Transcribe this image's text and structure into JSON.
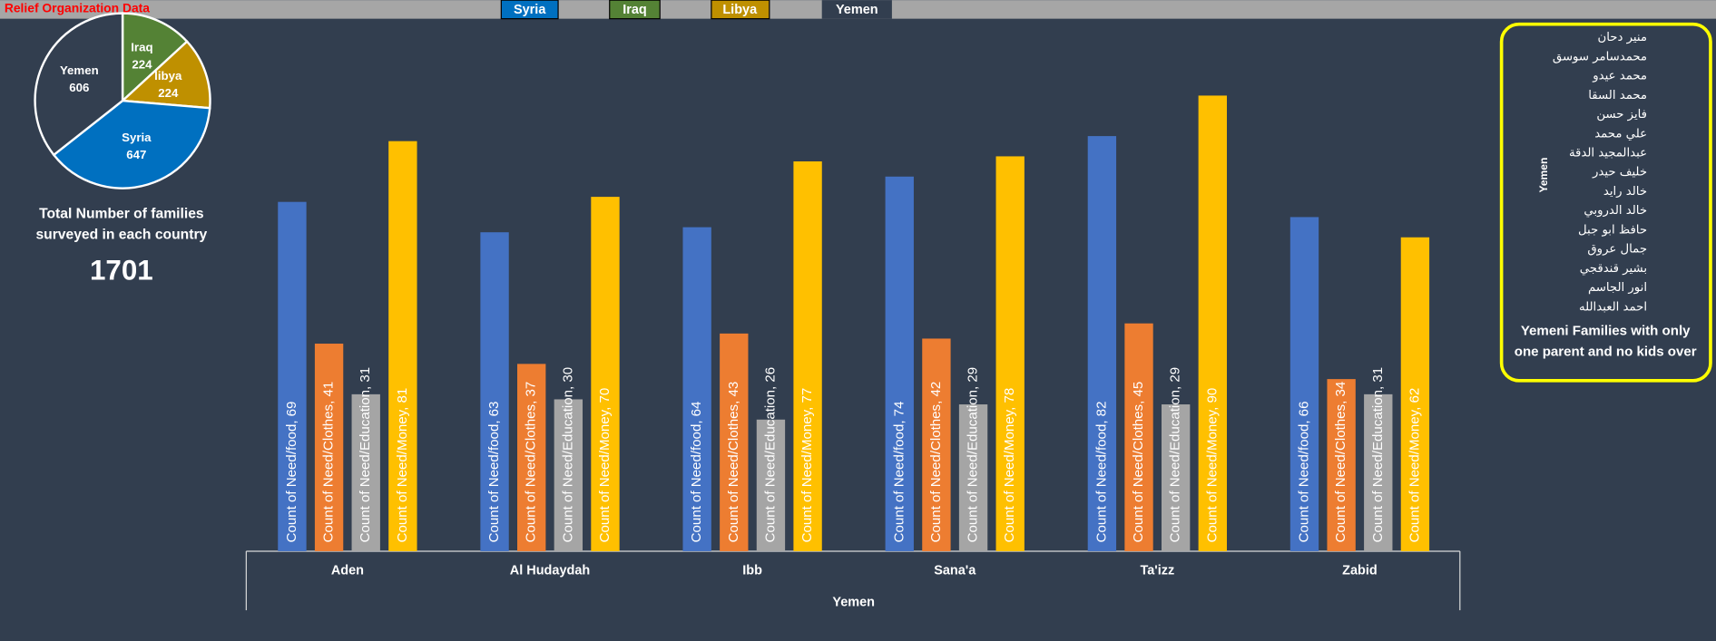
{
  "header": {
    "title": "Relief Organization Data",
    "tabs": [
      "Syria",
      "Iraq",
      "Libya",
      "Yemen"
    ]
  },
  "kpi": {
    "caption": [
      "Total Number of families",
      "surveyed in each country"
    ],
    "value": 1701
  },
  "panel": {
    "axis_label": "Yemen",
    "names": [
      "منير دحان",
      "محمدسامر سوسق",
      "محمد عيدو",
      "محمد السقا",
      "فايز حسن",
      "علي محمد",
      "عبدالمجيد الدقة",
      "خليف حيدر",
      "خالد رايد",
      "خالد الدروبي",
      "حافظ ابو جبل",
      "جمال عروق",
      "بشير قندقجي",
      "انور الجاسم",
      "احمد العبدالله"
    ],
    "caption": [
      "Yemeni Families with only",
      "one parent and no kids over"
    ]
  },
  "chart_data": [
    {
      "type": "pie",
      "categories": [
        "Iraq",
        "libya",
        "Syria",
        "Yemen"
      ],
      "values": [
        224,
        224,
        647,
        606
      ],
      "colors": [
        "#548235",
        "#bf9000",
        "#0070c0",
        "#333f50"
      ]
    },
    {
      "type": "bar",
      "x_label": "Yemen",
      "categories": [
        "Aden",
        "Al Hudaydah",
        "Ibb",
        "Sana'a",
        "Ta'izz",
        "Zabid"
      ],
      "ylim": [
        0,
        100
      ],
      "series": [
        {
          "name": "Count of Need/food",
          "color": "#4472c4",
          "values": [
            69,
            63,
            64,
            74,
            82,
            66
          ],
          "value_labels": [
            "Count of Need/food, 69",
            "Count of Need/food, 63",
            "Count of Need/food, 64",
            "Count of Need/food, 74",
            "Count of Need/food, 82",
            "Count of Need/food, 66"
          ]
        },
        {
          "name": "Count of Need/Clothes",
          "color": "#ed7d31",
          "values": [
            41,
            37,
            43,
            42,
            45,
            34
          ],
          "value_labels": [
            "Count of Need/Clothes, 41",
            "Count of Need/Clothes, 37",
            "Count of Need/Clothes, 43",
            "Count of Need/Clothes, 42",
            "Count of Need/Clothes, 45",
            "Count of Need/Clothes, 34"
          ]
        },
        {
          "name": "Count of Need/Education",
          "color": "#a5a5a5",
          "values": [
            31,
            30,
            26,
            29,
            29,
            31
          ],
          "value_labels": [
            "Count of Need/Education, 31",
            "Count of Need/Education, 30",
            "Count of Need/Education, 26",
            "Count of Need/Education, 29",
            "Count of Need/Education, 29",
            "Count of Need/Education, 31"
          ]
        },
        {
          "name": "Count of Need/Money",
          "color": "#ffc000",
          "values": [
            81,
            70,
            77,
            78,
            90,
            62
          ],
          "value_labels": [
            "Count of Need/Money, 81",
            "Count of Need/Money, 70",
            "Count of Need/Money, 77",
            "Count of Need/Money, 78",
            "Count of Need/Money, 90",
            "Count of Need/Money, 62"
          ]
        }
      ]
    }
  ]
}
